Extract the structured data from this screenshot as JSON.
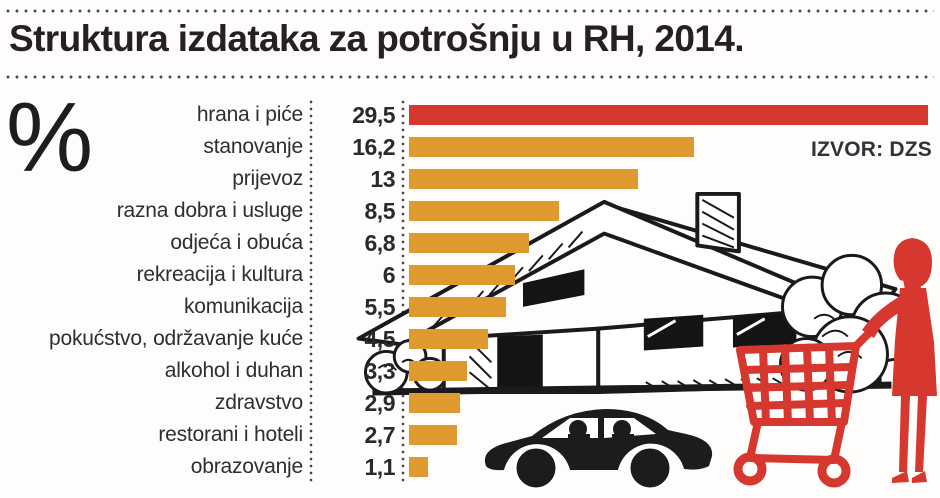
{
  "title": "Struktura izdataka za potrošnju u RH, 2014.",
  "percent_symbol": "%",
  "source_label": "IZVOR: DZS",
  "chart_data": {
    "type": "bar",
    "orientation": "horizontal",
    "title": "Struktura izdataka za potrošnju u RH, 2014.",
    "unit": "%",
    "source": "IZVOR: DZS",
    "categories": [
      "hrana i piće",
      "stanovanje",
      "prijevoz",
      "razna dobra i usluge",
      "odjeća i obuća",
      "rekreacija i kultura",
      "komunikacija",
      "pokućstvo, održavanje kuće",
      "alkohol i duhan",
      "zdravstvo",
      "restorani i hoteli",
      "obrazovanje"
    ],
    "values": [
      29.5,
      16.2,
      13,
      8.5,
      6.8,
      6,
      5.5,
      4.5,
      3.3,
      2.9,
      2.7,
      1.1
    ],
    "value_labels": [
      "29,5",
      "16,2",
      "13",
      "8,5",
      "6,8",
      "6",
      "5,5",
      "4,5",
      "3,3",
      "2,9",
      "2,7",
      "1,1"
    ],
    "xlim": [
      0,
      29.5
    ],
    "highlight_index": 0,
    "grid": false,
    "legend": null
  },
  "colors": {
    "highlight_bar": "#d6382e",
    "bar": "#e0992f",
    "title_text": "#272023",
    "label_text": "#2e2d36",
    "value_text": "#2a2930",
    "source_text": "#32323c",
    "dots": "#47474f",
    "illustration_black": "#1a1a1a",
    "illustration_red": "#d6372e",
    "background": "#fefdfb"
  },
  "illustrations": [
    "house-sketch",
    "car-silhouette",
    "woman-with-shopping-cart"
  ]
}
